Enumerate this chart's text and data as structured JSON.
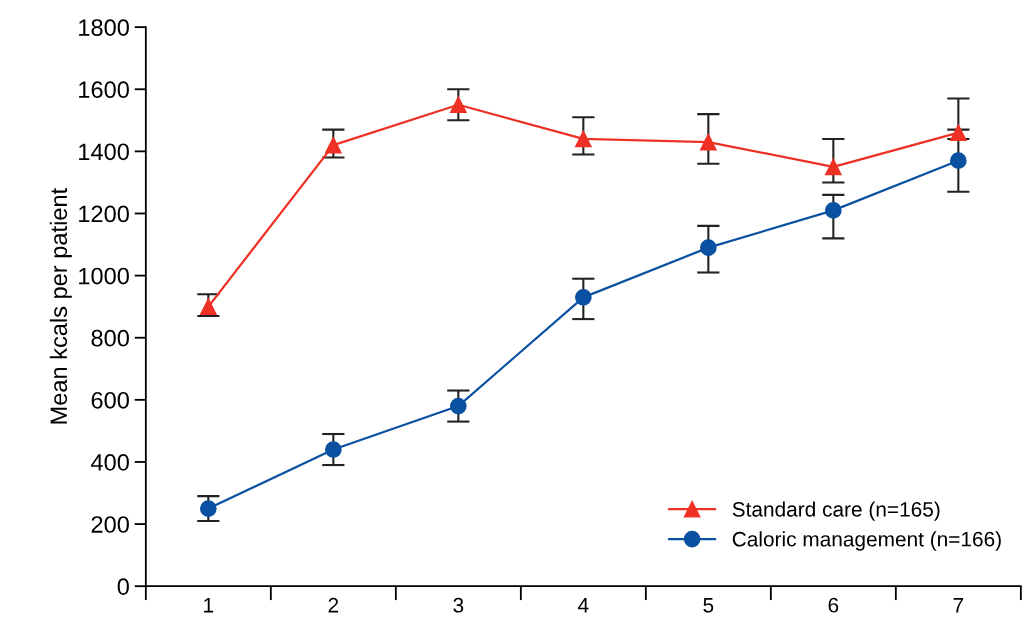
{
  "chart_data": {
    "type": "line",
    "ylabel": "Mean kcals per patient",
    "categories": [
      "1",
      "2",
      "3",
      "4",
      "5",
      "6",
      "7"
    ],
    "series": [
      {
        "name": "Standard care (n=165)",
        "color": "#ee3124",
        "marker": "triangle",
        "values": [
          900,
          1420,
          1550,
          1440,
          1430,
          1350,
          1460
        ],
        "errors": [
          [
            870,
            940
          ],
          [
            1380,
            1470
          ],
          [
            1500,
            1600
          ],
          [
            1390,
            1510
          ],
          [
            1360,
            1520
          ],
          [
            1300,
            1440
          ],
          [
            1440,
            1570
          ]
        ]
      },
      {
        "name": "Caloric management (n=166)",
        "color": "#0b51a1",
        "marker": "circle",
        "values": [
          250,
          440,
          580,
          930,
          1090,
          1210,
          1370
        ],
        "errors": [
          [
            210,
            290
          ],
          [
            390,
            490
          ],
          [
            530,
            630
          ],
          [
            860,
            990
          ],
          [
            1010,
            1160
          ],
          [
            1120,
            1260
          ],
          [
            1270,
            1470
          ]
        ]
      }
    ],
    "ylim": [
      0,
      1800
    ],
    "yticks": [
      0,
      200,
      400,
      600,
      800,
      1000,
      1200,
      1400,
      1600,
      1800
    ],
    "grid": false,
    "legend": "bottom right",
    "line_style": "solid"
  }
}
